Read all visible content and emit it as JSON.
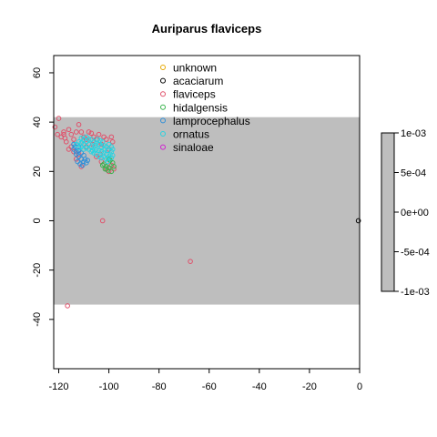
{
  "chart_data": {
    "type": "scatter",
    "title": "Auriparus flaviceps",
    "xlabel": "",
    "ylabel": "",
    "xlim": [
      -122,
      0
    ],
    "ylim": [
      -60,
      67
    ],
    "xticks": [
      -120,
      -100,
      -80,
      -60,
      -40,
      -20,
      0
    ],
    "yticks": [
      -40,
      -20,
      0,
      20,
      40,
      60
    ],
    "band": {
      "y_from": -34,
      "y_to": 42,
      "color": "#bebebe"
    },
    "colors": {
      "unknown": "#e6a800",
      "acaciarum": "#000000",
      "flaviceps": "#e0506a",
      "hidalgensis": "#36b24a",
      "lamprocephalus": "#2f8fd8",
      "ornatus": "#27d3e0",
      "sinaloae": "#d020d0"
    },
    "legend": {
      "position": "top-center",
      "entries": [
        "unknown",
        "acaciarum",
        "flaviceps",
        "hidalgensis",
        "lamprocephalus",
        "ornatus",
        "sinaloae"
      ]
    },
    "colorbar": {
      "labels": [
        "1e-03",
        "5e-04",
        "0e+00",
        "-5e-04",
        "-1e-03"
      ],
      "color": "#bebebe"
    },
    "series": [
      {
        "name": "acaciarum",
        "points": [
          [
            -0.5,
            0
          ]
        ]
      },
      {
        "name": "flaviceps",
        "points": [
          [
            -121.5,
            38
          ],
          [
            -120,
            41.5
          ],
          [
            -118,
            36
          ],
          [
            -116,
            37
          ],
          [
            -115,
            35
          ],
          [
            -114,
            33
          ],
          [
            -113,
            36
          ],
          [
            -117,
            32
          ],
          [
            -119,
            34
          ],
          [
            -112,
            39
          ],
          [
            -111,
            36
          ],
          [
            -110,
            34
          ],
          [
            -108,
            36
          ],
          [
            -107,
            35.5
          ],
          [
            -106,
            34
          ],
          [
            -105,
            33
          ],
          [
            -104,
            35
          ],
          [
            -102,
            34
          ],
          [
            -101,
            33
          ],
          [
            -99,
            34
          ],
          [
            -98.5,
            32
          ],
          [
            -100,
            29
          ],
          [
            -103,
            31
          ],
          [
            -109,
            30
          ],
          [
            -112,
            27
          ],
          [
            -113,
            25
          ],
          [
            -114,
            28
          ],
          [
            -115,
            30
          ],
          [
            -116,
            29
          ],
          [
            -111,
            22
          ],
          [
            -101,
            21
          ],
          [
            -100,
            20
          ],
          [
            -99,
            22.5
          ],
          [
            -98,
            21
          ],
          [
            -103,
            24
          ],
          [
            -105,
            26
          ],
          [
            -107,
            30
          ],
          [
            -109,
            33
          ],
          [
            -110,
            31
          ],
          [
            -118,
            35
          ],
          [
            -102.5,
            0
          ],
          [
            -67.5,
            -16.5
          ],
          [
            -116.5,
            -34.5
          ],
          [
            -120.5,
            35
          ],
          [
            -117.5,
            33.5
          ],
          [
            -106.5,
            31
          ],
          [
            -103.5,
            27
          ]
        ]
      },
      {
        "name": "hidalgensis",
        "points": [
          [
            -100.5,
            20.5
          ],
          [
            -99,
            20
          ],
          [
            -101,
            22
          ],
          [
            -102,
            23
          ],
          [
            -98.5,
            23.5
          ],
          [
            -99.5,
            24.5
          ],
          [
            -100,
            21.5
          ],
          [
            -101.5,
            21
          ],
          [
            -98,
            22
          ],
          [
            -102.5,
            22.5
          ],
          [
            -100,
            25
          ]
        ]
      },
      {
        "name": "lamprocephalus",
        "points": [
          [
            -113,
            27
          ],
          [
            -112,
            26
          ],
          [
            -111,
            25
          ],
          [
            -110,
            24
          ],
          [
            -109,
            23.5
          ],
          [
            -112.5,
            24
          ],
          [
            -111.5,
            23
          ],
          [
            -110.5,
            22.5
          ],
          [
            -114,
            29
          ],
          [
            -113.5,
            30
          ],
          [
            -112,
            28.5
          ],
          [
            -111,
            27.5
          ],
          [
            -110,
            26.5
          ],
          [
            -109.5,
            25
          ],
          [
            -108.5,
            24.5
          ],
          [
            -113,
            28
          ],
          [
            -112,
            30
          ],
          [
            -114,
            31
          ]
        ]
      },
      {
        "name": "ornatus",
        "points": [
          [
            -112,
            32
          ],
          [
            -111,
            31.5
          ],
          [
            -110,
            31
          ],
          [
            -109,
            32
          ],
          [
            -108,
            31
          ],
          [
            -107,
            30
          ],
          [
            -106,
            29.5
          ],
          [
            -105,
            29
          ],
          [
            -104,
            28.5
          ],
          [
            -103,
            28
          ],
          [
            -102,
            27.5
          ],
          [
            -101,
            27
          ],
          [
            -100,
            26
          ],
          [
            -99.5,
            27
          ],
          [
            -99,
            28
          ],
          [
            -98.5,
            29
          ],
          [
            -99,
            30
          ],
          [
            -100,
            31
          ],
          [
            -101,
            30
          ],
          [
            -102,
            30.5
          ],
          [
            -103,
            30
          ],
          [
            -104,
            31
          ],
          [
            -105,
            31.5
          ],
          [
            -106,
            32
          ],
          [
            -107,
            33
          ],
          [
            -108,
            33
          ],
          [
            -109,
            34
          ],
          [
            -110,
            33
          ],
          [
            -111,
            33.5
          ],
          [
            -105,
            27
          ],
          [
            -106,
            27.5
          ],
          [
            -104,
            26
          ],
          [
            -103,
            25.5
          ],
          [
            -102,
            26
          ],
          [
            -101,
            25
          ],
          [
            -100.5,
            24
          ],
          [
            -107,
            28
          ],
          [
            -108,
            29
          ],
          [
            -109,
            29.5
          ],
          [
            -110,
            29
          ],
          [
            -111,
            30
          ],
          [
            -112,
            29.5
          ],
          [
            -113,
            31
          ],
          [
            -104.5,
            33
          ],
          [
            -103.5,
            32.5
          ],
          [
            -102.5,
            32
          ],
          [
            -101.5,
            29
          ],
          [
            -100.5,
            28.5
          ],
          [
            -99,
            25.5
          ],
          [
            -98.5,
            26.5
          ],
          [
            -106.5,
            28.5
          ],
          [
            -105.5,
            30.5
          ]
        ]
      }
    ]
  }
}
